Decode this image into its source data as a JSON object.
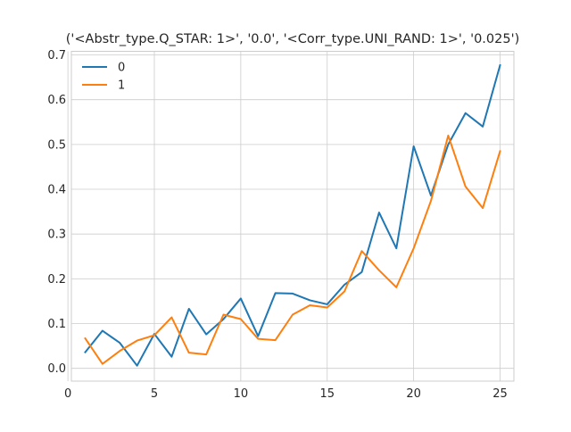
{
  "chart_data": {
    "type": "line",
    "title": "('<Abstr_type.Q_STAR: 1>', '0.0', '<Corr_type.UNI_RAND: 1>', '0.025')",
    "xlabel": "",
    "ylabel": "",
    "xlim": [
      0.2,
      25.8
    ],
    "ylim": [
      -0.0285,
      0.708
    ],
    "x_ticks": [
      0,
      5,
      10,
      15,
      20,
      25
    ],
    "y_ticks": [
      0.0,
      0.1,
      0.2,
      0.3,
      0.4,
      0.5,
      0.6,
      0.7
    ],
    "x_tick_labels": [
      "0",
      "5",
      "10",
      "15",
      "20",
      "25"
    ],
    "y_tick_labels": [
      "0.0",
      "0.1",
      "0.2",
      "0.3",
      "0.4",
      "0.5",
      "0.6",
      "0.7"
    ],
    "grid": true,
    "legend_position": "top-left",
    "x": [
      1,
      2,
      3,
      4,
      5,
      6,
      7,
      8,
      9,
      10,
      11,
      12,
      13,
      14,
      15,
      16,
      17,
      18,
      19,
      20,
      21,
      22,
      23,
      24,
      25
    ],
    "series": [
      {
        "name": "0",
        "color": "#1f77b4",
        "values": [
          0.036,
          0.084,
          0.057,
          0.006,
          0.077,
          0.026,
          0.133,
          0.076,
          0.11,
          0.156,
          0.072,
          0.168,
          0.167,
          0.152,
          0.143,
          0.187,
          0.215,
          0.348,
          0.268,
          0.496,
          0.386,
          0.5,
          0.57,
          0.54,
          0.677
        ]
      },
      {
        "name": "1",
        "color": "#ff7f0e",
        "values": [
          0.067,
          0.01,
          0.039,
          0.062,
          0.074,
          0.114,
          0.035,
          0.031,
          0.12,
          0.11,
          0.066,
          0.063,
          0.12,
          0.141,
          0.136,
          0.172,
          0.262,
          0.219,
          0.181,
          0.268,
          0.374,
          0.52,
          0.406,
          0.358,
          0.485
        ]
      }
    ]
  }
}
